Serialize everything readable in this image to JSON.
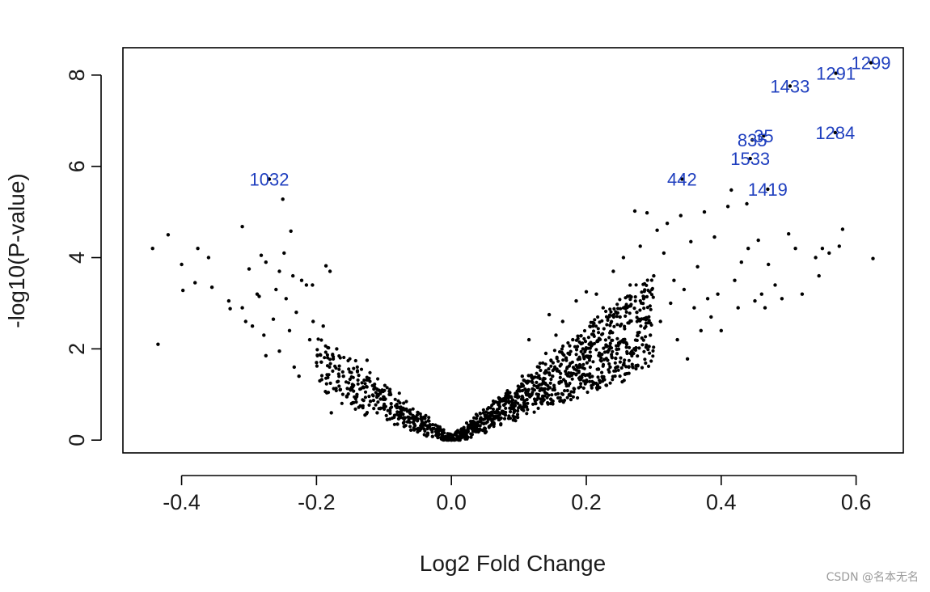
{
  "chart_data": {
    "type": "scatter",
    "xlabel": "Log2 Fold Change",
    "ylabel": "-log10(P-value)",
    "xlim": [
      -0.487,
      0.67
    ],
    "ylim": [
      -0.28,
      8.6
    ],
    "x_ticks": [
      -0.4,
      -0.2,
      0.0,
      0.2,
      0.4,
      0.6
    ],
    "x_tick_labels": [
      "-0.4",
      "-0.2",
      "0.0",
      "0.2",
      "0.4",
      "0.6"
    ],
    "y_ticks": [
      0,
      2,
      4,
      6,
      8
    ],
    "y_tick_labels": [
      "0",
      "2",
      "4",
      "6",
      "8"
    ],
    "point_color": "#000000",
    "label_color": "#1f3fbf",
    "grid": false,
    "legend": "none",
    "labeled_points": [
      {
        "label": "1032",
        "x": -0.27,
        "y": 5.72
      },
      {
        "label": "442",
        "x": 0.342,
        "y": 5.72
      },
      {
        "label": "1419",
        "x": 0.469,
        "y": 5.5
      },
      {
        "label": "1533",
        "x": 0.443,
        "y": 6.17
      },
      {
        "label": "835",
        "x": 0.446,
        "y": 6.58
      },
      {
        "label": "35",
        "x": 0.463,
        "y": 6.67
      },
      {
        "label": "1284",
        "x": 0.569,
        "y": 6.74
      },
      {
        "label": "1433",
        "x": 0.502,
        "y": 7.76
      },
      {
        "label": "1291",
        "x": 0.57,
        "y": 8.04
      },
      {
        "label": "1299",
        "x": 0.622,
        "y": 8.27
      }
    ],
    "points": [
      {
        "x": -0.443,
        "y": 4.2
      },
      {
        "x": -0.435,
        "y": 2.1
      },
      {
        "x": -0.42,
        "y": 4.5
      },
      {
        "x": -0.4,
        "y": 3.85
      },
      {
        "x": -0.398,
        "y": 3.28
      },
      {
        "x": -0.38,
        "y": 3.45
      },
      {
        "x": -0.376,
        "y": 4.2
      },
      {
        "x": -0.36,
        "y": 4.0
      },
      {
        "x": -0.355,
        "y": 3.35
      },
      {
        "x": -0.33,
        "y": 3.05
      },
      {
        "x": -0.328,
        "y": 2.88
      },
      {
        "x": -0.31,
        "y": 4.68
      },
      {
        "x": -0.31,
        "y": 2.9
      },
      {
        "x": -0.305,
        "y": 2.6
      },
      {
        "x": -0.3,
        "y": 3.75
      },
      {
        "x": -0.295,
        "y": 2.5
      },
      {
        "x": -0.288,
        "y": 3.2
      },
      {
        "x": -0.285,
        "y": 3.15
      },
      {
        "x": -0.282,
        "y": 4.05
      },
      {
        "x": -0.275,
        "y": 3.9
      },
      {
        "x": -0.278,
        "y": 2.3
      },
      {
        "x": -0.275,
        "y": 1.85
      },
      {
        "x": -0.264,
        "y": 2.65
      },
      {
        "x": -0.26,
        "y": 3.3
      },
      {
        "x": -0.255,
        "y": 3.7
      },
      {
        "x": -0.255,
        "y": 1.95
      },
      {
        "x": -0.25,
        "y": 5.28
      },
      {
        "x": -0.248,
        "y": 4.1
      },
      {
        "x": -0.245,
        "y": 3.1
      },
      {
        "x": -0.24,
        "y": 2.4
      },
      {
        "x": -0.238,
        "y": 4.58
      },
      {
        "x": -0.235,
        "y": 3.6
      },
      {
        "x": -0.233,
        "y": 1.6
      },
      {
        "x": -0.23,
        "y": 2.8
      },
      {
        "x": -0.226,
        "y": 1.4
      },
      {
        "x": -0.222,
        "y": 3.5
      },
      {
        "x": -0.215,
        "y": 3.4
      },
      {
        "x": -0.21,
        "y": 2.2
      },
      {
        "x": -0.206,
        "y": 3.4
      },
      {
        "x": -0.205,
        "y": 2.6
      },
      {
        "x": -0.2,
        "y": 1.7
      },
      {
        "x": -0.195,
        "y": 1.3
      },
      {
        "x": -0.19,
        "y": 2.5
      },
      {
        "x": -0.186,
        "y": 3.82
      },
      {
        "x": -0.18,
        "y": 3.7
      },
      {
        "x": -0.178,
        "y": 0.6
      },
      {
        "x": -0.17,
        "y": 2.0
      },
      {
        "x": -0.165,
        "y": 1.1
      },
      {
        "x": -0.16,
        "y": 1.4
      },
      {
        "x": -0.155,
        "y": 0.95
      },
      {
        "x": -0.148,
        "y": 0.8
      },
      {
        "x": -0.145,
        "y": 1.2
      },
      {
        "x": -0.14,
        "y": 1.0
      },
      {
        "x": -0.135,
        "y": 0.75
      },
      {
        "x": -0.13,
        "y": 1.15
      },
      {
        "x": -0.128,
        "y": 0.55
      },
      {
        "x": -0.125,
        "y": 1.75
      },
      {
        "x": -0.12,
        "y": 0.85
      },
      {
        "x": -0.115,
        "y": 1.2
      },
      {
        "x": -0.11,
        "y": 0.6
      },
      {
        "x": -0.105,
        "y": 0.9
      },
      {
        "x": -0.1,
        "y": 0.75
      },
      {
        "x": -0.095,
        "y": 0.45
      },
      {
        "x": -0.092,
        "y": 1.0
      },
      {
        "x": -0.085,
        "y": 0.5
      },
      {
        "x": -0.08,
        "y": 0.35
      },
      {
        "x": -0.075,
        "y": 0.6
      },
      {
        "x": -0.07,
        "y": 0.3
      },
      {
        "x": -0.065,
        "y": 0.4
      },
      {
        "x": -0.06,
        "y": 0.22
      },
      {
        "x": -0.055,
        "y": 0.35
      },
      {
        "x": -0.05,
        "y": 0.18
      },
      {
        "x": -0.045,
        "y": 0.25
      },
      {
        "x": -0.04,
        "y": 0.12
      },
      {
        "x": -0.035,
        "y": 0.15
      },
      {
        "x": -0.028,
        "y": 0.08
      },
      {
        "x": -0.02,
        "y": 0.06
      },
      {
        "x": -0.012,
        "y": 0.03
      },
      {
        "x": 0.0,
        "y": 0.0
      },
      {
        "x": 0.01,
        "y": 0.03
      },
      {
        "x": 0.02,
        "y": 0.07
      },
      {
        "x": 0.03,
        "y": 0.12
      },
      {
        "x": 0.04,
        "y": 0.18
      },
      {
        "x": 0.05,
        "y": 0.25
      },
      {
        "x": 0.06,
        "y": 0.35
      },
      {
        "x": 0.065,
        "y": 0.6
      },
      {
        "x": 0.07,
        "y": 0.45
      },
      {
        "x": 0.08,
        "y": 0.55
      },
      {
        "x": 0.085,
        "y": 0.85
      },
      {
        "x": 0.09,
        "y": 0.7
      },
      {
        "x": 0.1,
        "y": 0.95
      },
      {
        "x": 0.105,
        "y": 1.4
      },
      {
        "x": 0.11,
        "y": 1.1
      },
      {
        "x": 0.115,
        "y": 2.2
      },
      {
        "x": 0.12,
        "y": 1.35
      },
      {
        "x": 0.125,
        "y": 0.8
      },
      {
        "x": 0.13,
        "y": 1.6
      },
      {
        "x": 0.135,
        "y": 1.1
      },
      {
        "x": 0.14,
        "y": 1.9
      },
      {
        "x": 0.145,
        "y": 2.75
      },
      {
        "x": 0.15,
        "y": 1.4
      },
      {
        "x": 0.155,
        "y": 2.3
      },
      {
        "x": 0.16,
        "y": 1.25
      },
      {
        "x": 0.165,
        "y": 2.6
      },
      {
        "x": 0.17,
        "y": 1.8
      },
      {
        "x": 0.175,
        "y": 1.0
      },
      {
        "x": 0.18,
        "y": 2.2
      },
      {
        "x": 0.185,
        "y": 3.05
      },
      {
        "x": 0.19,
        "y": 1.6
      },
      {
        "x": 0.195,
        "y": 2.0
      },
      {
        "x": 0.2,
        "y": 3.25
      },
      {
        "x": 0.205,
        "y": 1.45
      },
      {
        "x": 0.21,
        "y": 2.5
      },
      {
        "x": 0.215,
        "y": 3.2
      },
      {
        "x": 0.22,
        "y": 1.85
      },
      {
        "x": 0.225,
        "y": 2.9
      },
      {
        "x": 0.23,
        "y": 1.2
      },
      {
        "x": 0.235,
        "y": 2.35
      },
      {
        "x": 0.24,
        "y": 3.7
      },
      {
        "x": 0.245,
        "y": 1.6
      },
      {
        "x": 0.25,
        "y": 2.7
      },
      {
        "x": 0.255,
        "y": 4.0
      },
      {
        "x": 0.26,
        "y": 2.1
      },
      {
        "x": 0.265,
        "y": 3.4
      },
      {
        "x": 0.27,
        "y": 1.9
      },
      {
        "x": 0.272,
        "y": 5.02
      },
      {
        "x": 0.275,
        "y": 2.8
      },
      {
        "x": 0.28,
        "y": 4.25
      },
      {
        "x": 0.285,
        "y": 3.1
      },
      {
        "x": 0.29,
        "y": 4.98
      },
      {
        "x": 0.295,
        "y": 2.3
      },
      {
        "x": 0.3,
        "y": 3.6
      },
      {
        "x": 0.305,
        "y": 4.6
      },
      {
        "x": 0.31,
        "y": 2.6
      },
      {
        "x": 0.315,
        "y": 4.1
      },
      {
        "x": 0.32,
        "y": 4.75
      },
      {
        "x": 0.325,
        "y": 3.0
      },
      {
        "x": 0.33,
        "y": 3.5
      },
      {
        "x": 0.335,
        "y": 2.2
      },
      {
        "x": 0.34,
        "y": 4.92
      },
      {
        "x": 0.345,
        "y": 3.3
      },
      {
        "x": 0.35,
        "y": 1.78
      },
      {
        "x": 0.355,
        "y": 4.35
      },
      {
        "x": 0.36,
        "y": 2.9
      },
      {
        "x": 0.365,
        "y": 3.8
      },
      {
        "x": 0.37,
        "y": 2.4
      },
      {
        "x": 0.375,
        "y": 5.0
      },
      {
        "x": 0.38,
        "y": 3.1
      },
      {
        "x": 0.385,
        "y": 2.7
      },
      {
        "x": 0.39,
        "y": 4.45
      },
      {
        "x": 0.395,
        "y": 3.2
      },
      {
        "x": 0.4,
        "y": 2.4
      },
      {
        "x": 0.41,
        "y": 5.12
      },
      {
        "x": 0.415,
        "y": 5.48
      },
      {
        "x": 0.42,
        "y": 3.5
      },
      {
        "x": 0.425,
        "y": 2.9
      },
      {
        "x": 0.43,
        "y": 3.9
      },
      {
        "x": 0.438,
        "y": 5.18
      },
      {
        "x": 0.44,
        "y": 4.2
      },
      {
        "x": 0.45,
        "y": 3.05
      },
      {
        "x": 0.455,
        "y": 4.38
      },
      {
        "x": 0.46,
        "y": 3.2
      },
      {
        "x": 0.465,
        "y": 2.9
      },
      {
        "x": 0.47,
        "y": 3.85
      },
      {
        "x": 0.48,
        "y": 3.4
      },
      {
        "x": 0.49,
        "y": 3.1
      },
      {
        "x": 0.5,
        "y": 4.52
      },
      {
        "x": 0.51,
        "y": 4.2
      },
      {
        "x": 0.52,
        "y": 3.2
      },
      {
        "x": 0.54,
        "y": 4.0
      },
      {
        "x": 0.545,
        "y": 3.6
      },
      {
        "x": 0.55,
        "y": 4.2
      },
      {
        "x": 0.56,
        "y": 4.1
      },
      {
        "x": 0.575,
        "y": 4.25
      },
      {
        "x": 0.58,
        "y": 4.62
      },
      {
        "x": 0.625,
        "y": 3.98
      }
    ]
  },
  "watermark": "CSDN @名本无名"
}
